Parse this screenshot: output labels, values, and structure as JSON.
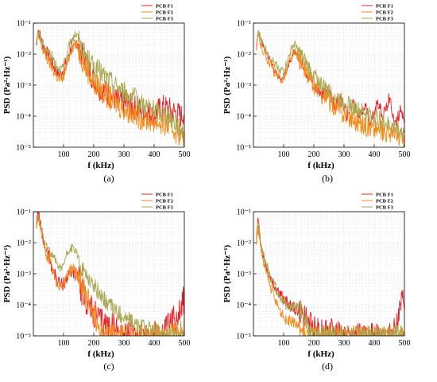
{
  "colors": {
    "F1": "#e8202a",
    "F2": "#f28c1a",
    "F3": "#a8a850",
    "grid": "#dcdcdc"
  },
  "chart_data": [
    {
      "type": "line",
      "caption": "(a)",
      "xlabel": "f (kHz)",
      "ylabel": "PSD (Pa²·Hz⁻¹)",
      "y_scale": "log",
      "xlim": [
        0,
        500
      ],
      "ylim": [
        1e-05,
        0.1
      ],
      "xticks": [
        "100",
        "200",
        "300",
        "400",
        "500"
      ],
      "yticks": [
        "10⁻⁵",
        "10⁻⁴",
        "10⁻³",
        "10⁻²",
        "10⁻¹"
      ],
      "grid": true,
      "legend_position": "top-right",
      "series": [
        {
          "name": "PCB F1",
          "color_key": "F1",
          "x": [
            10,
            15,
            20,
            25,
            30,
            40,
            50,
            60,
            70,
            80,
            90,
            100,
            110,
            120,
            130,
            140,
            150,
            160,
            180,
            200,
            220,
            250,
            280,
            300,
            330,
            360,
            400,
            430,
            460,
            490,
            500
          ],
          "y": [
            0.02,
            0.07,
            0.045,
            0.03,
            0.022,
            0.014,
            0.009,
            0.006,
            0.0035,
            0.0025,
            0.0022,
            0.0035,
            0.006,
            0.012,
            0.02,
            0.024,
            0.016,
            0.01,
            0.004,
            0.0015,
            0.0008,
            0.0005,
            0.0003,
            0.00025,
            0.0002,
            0.00015,
            0.00012,
            0.0002,
            0.00015,
            0.0001,
            0.00015
          ],
          "noise": 0.3
        },
        {
          "name": "PCB F2",
          "color_key": "F2",
          "x": [
            10,
            15,
            20,
            25,
            30,
            40,
            50,
            60,
            70,
            80,
            90,
            100,
            110,
            120,
            130,
            140,
            150,
            160,
            180,
            200,
            250,
            300,
            350,
            400,
            450,
            480,
            500
          ],
          "y": [
            0.015,
            0.04,
            0.03,
            0.022,
            0.015,
            0.009,
            0.006,
            0.004,
            0.0025,
            0.0018,
            0.0013,
            0.002,
            0.004,
            0.01,
            0.018,
            0.022,
            0.014,
            0.008,
            0.003,
            0.0012,
            0.0004,
            0.00018,
            0.0001,
            7e-05,
            5e-05,
            3e-05,
            2e-05
          ],
          "noise": 0.3
        },
        {
          "name": "PCB F3",
          "color_key": "F3",
          "x": [
            10,
            15,
            20,
            25,
            30,
            40,
            50,
            60,
            70,
            80,
            90,
            100,
            110,
            120,
            130,
            140,
            150,
            160,
            180,
            200,
            250,
            300,
            350,
            400,
            450,
            480,
            500
          ],
          "y": [
            0.02,
            0.05,
            0.04,
            0.03,
            0.022,
            0.016,
            0.012,
            0.009,
            0.006,
            0.004,
            0.003,
            0.004,
            0.008,
            0.02,
            0.04,
            0.045,
            0.03,
            0.015,
            0.007,
            0.004,
            0.0015,
            0.0006,
            0.0003,
            0.00015,
            0.0001,
            5e-05,
            3e-05
          ],
          "noise": 0.25
        }
      ]
    },
    {
      "type": "line",
      "caption": "(b)",
      "xlabel": "f (kHz)",
      "ylabel": "PSD (Pa²·Hz⁻¹)",
      "y_scale": "log",
      "xlim": [
        0,
        500
      ],
      "ylim": [
        1e-05,
        0.1
      ],
      "xticks": [
        "100",
        "200",
        "300",
        "400",
        "500"
      ],
      "yticks": [
        "10⁻⁵",
        "10⁻⁴",
        "10⁻³",
        "10⁻²",
        "10⁻¹"
      ],
      "grid": true,
      "legend_position": "top-right",
      "series": [
        {
          "name": "PCB F1",
          "color_key": "F1",
          "x": [
            10,
            15,
            20,
            25,
            30,
            40,
            50,
            60,
            70,
            80,
            90,
            100,
            110,
            120,
            130,
            140,
            150,
            160,
            180,
            200,
            220,
            250,
            270,
            290,
            310,
            330,
            350,
            370,
            390,
            410,
            430,
            450,
            470,
            490,
            500
          ],
          "y": [
            0.015,
            0.06,
            0.04,
            0.028,
            0.02,
            0.012,
            0.008,
            0.005,
            0.003,
            0.002,
            0.0015,
            0.002,
            0.003,
            0.006,
            0.01,
            0.012,
            0.008,
            0.005,
            0.002,
            0.001,
            0.0005,
            0.0006,
            0.0002,
            0.0004,
            0.0001,
            0.0003,
            8e-05,
            0.0002,
            6e-05,
            0.0003,
            0.0001,
            0.0004,
            5e-05,
            0.0002,
            5e-05
          ],
          "noise": 0.15
        },
        {
          "name": "PCB F2",
          "color_key": "F2",
          "x": [
            10,
            15,
            20,
            25,
            30,
            40,
            50,
            60,
            70,
            80,
            90,
            100,
            110,
            120,
            130,
            140,
            150,
            160,
            180,
            200,
            250,
            300,
            350,
            400,
            450,
            480,
            500
          ],
          "y": [
            0.012,
            0.04,
            0.03,
            0.02,
            0.015,
            0.009,
            0.006,
            0.004,
            0.0025,
            0.0018,
            0.0014,
            0.0018,
            0.003,
            0.006,
            0.009,
            0.011,
            0.008,
            0.005,
            0.002,
            0.001,
            0.0003,
            0.00012,
            6e-05,
            4e-05,
            3e-05,
            2e-05,
            2e-05
          ],
          "noise": 0.25
        },
        {
          "name": "PCB F3",
          "color_key": "F3",
          "x": [
            10,
            15,
            20,
            25,
            30,
            40,
            50,
            60,
            70,
            80,
            90,
            100,
            110,
            120,
            130,
            140,
            150,
            160,
            180,
            200,
            250,
            300,
            350,
            400,
            450,
            480,
            500
          ],
          "y": [
            0.02,
            0.05,
            0.04,
            0.03,
            0.022,
            0.015,
            0.01,
            0.007,
            0.005,
            0.004,
            0.003,
            0.003,
            0.005,
            0.01,
            0.018,
            0.02,
            0.012,
            0.008,
            0.004,
            0.002,
            0.0006,
            0.0003,
            0.00015,
            0.0001,
            5e-05,
            4e-05,
            3e-05
          ],
          "noise": 0.2
        }
      ]
    },
    {
      "type": "line",
      "caption": "(c)",
      "xlabel": "f (kHz)",
      "ylabel": "PSD (Pa²·Hz⁻¹)",
      "y_scale": "log",
      "xlim": [
        0,
        500
      ],
      "ylim": [
        1e-05,
        0.1
      ],
      "xticks": [
        "100",
        "200",
        "300",
        "400",
        "500"
      ],
      "yticks": [
        "10⁻⁵",
        "10⁻⁴",
        "10⁻³",
        "10⁻²",
        "10⁻¹"
      ],
      "grid": true,
      "legend_position": "top-right",
      "series": [
        {
          "name": "PCB F1",
          "color_key": "F1",
          "x": [
            10,
            15,
            20,
            25,
            30,
            40,
            50,
            60,
            70,
            80,
            90,
            100,
            110,
            120,
            130,
            140,
            150,
            160,
            180,
            200,
            220,
            250,
            280,
            300,
            350,
            400,
            430,
            450,
            470,
            490,
            500
          ],
          "y": [
            0.04,
            0.1,
            0.06,
            0.03,
            0.015,
            0.007,
            0.004,
            0.002,
            0.001,
            0.0006,
            0.0004,
            0.0005,
            0.0007,
            0.001,
            0.0012,
            0.001,
            0.0006,
            0.0003,
            0.0001,
            5e-05,
            3e-05,
            2e-05,
            1.5e-05,
            1e-05,
            1e-05,
            1e-05,
            1e-05,
            2e-05,
            4e-05,
            0.0001,
            0.00015
          ],
          "noise": 0.35
        },
        {
          "name": "PCB F2",
          "color_key": "F2",
          "x": [
            10,
            15,
            20,
            25,
            30,
            40,
            50,
            60,
            70,
            80,
            90,
            100,
            110,
            120,
            130,
            140,
            150,
            160,
            180,
            200,
            220,
            250,
            280,
            300,
            350,
            400,
            450,
            480,
            500
          ],
          "y": [
            0.03,
            0.08,
            0.05,
            0.025,
            0.012,
            0.005,
            0.003,
            0.0015,
            0.0008,
            0.0005,
            0.0004,
            0.0005,
            0.0008,
            0.0012,
            0.0015,
            0.0012,
            0.0007,
            0.0004,
            0.00015,
            5e-05,
            2e-05,
            1e-05,
            1e-05,
            1e-05,
            1e-05,
            1e-05,
            1e-05,
            1.2e-05,
            2e-05
          ],
          "noise": 0.3
        },
        {
          "name": "PCB F3",
          "color_key": "F3",
          "x": [
            10,
            15,
            20,
            25,
            30,
            40,
            50,
            60,
            70,
            80,
            90,
            100,
            110,
            120,
            130,
            140,
            150,
            160,
            180,
            200,
            250,
            300,
            350,
            400,
            450,
            480,
            500
          ],
          "y": [
            0.03,
            0.08,
            0.05,
            0.03,
            0.02,
            0.01,
            0.006,
            0.004,
            0.003,
            0.002,
            0.0015,
            0.002,
            0.004,
            0.006,
            0.007,
            0.005,
            0.003,
            0.0015,
            0.0008,
            0.0004,
            0.0001,
            4e-05,
            2e-05,
            1.5e-05,
            1e-05,
            1e-05,
            1e-05
          ],
          "noise": 0.2
        }
      ]
    },
    {
      "type": "line",
      "caption": "(d)",
      "xlabel": "f (kHz)",
      "ylabel": "PSD (Pa²·Hz⁻¹)",
      "y_scale": "log",
      "xlim": [
        0,
        500
      ],
      "ylim": [
        1e-05,
        0.1
      ],
      "xticks": [
        "100",
        "200",
        "300",
        "400",
        "500"
      ],
      "yticks": [
        "10⁻⁵",
        "10⁻⁴",
        "10⁻³",
        "10⁻²",
        "10⁻¹"
      ],
      "grid": true,
      "legend_position": "top-right",
      "series": [
        {
          "name": "PCB F1",
          "color_key": "F1",
          "x": [
            10,
            15,
            20,
            25,
            30,
            40,
            50,
            60,
            70,
            80,
            90,
            100,
            110,
            120,
            140,
            160,
            180,
            200,
            250,
            300,
            350,
            400,
            430,
            450,
            470,
            480,
            490,
            500
          ],
          "y": [
            0.015,
            0.05,
            0.02,
            0.01,
            0.005,
            0.002,
            0.001,
            0.0006,
            0.0004,
            0.0003,
            0.0002,
            0.00015,
            0.00012,
            0.0001,
            7e-05,
            5e-05,
            3e-05,
            2e-05,
            1.5e-05,
            1e-05,
            1e-05,
            1e-05,
            1e-05,
            1e-05,
            2e-05,
            4e-05,
            0.0001,
            0.00015
          ],
          "noise": 0.3
        },
        {
          "name": "PCB F2",
          "color_key": "F2",
          "x": [
            10,
            15,
            20,
            25,
            30,
            40,
            50,
            60,
            70,
            80,
            90,
            100,
            110,
            120,
            140,
            160,
            180,
            200,
            250,
            300,
            350,
            400,
            450,
            500
          ],
          "y": [
            0.01,
            0.03,
            0.015,
            0.007,
            0.003,
            0.0012,
            0.0006,
            0.0003,
            0.00015,
            0.0001,
            6e-05,
            4e-05,
            3e-05,
            3e-05,
            2.5e-05,
            1.5e-05,
            1e-05,
            1e-05,
            1e-05,
            1e-05,
            1e-05,
            1e-05,
            1e-05,
            1e-05
          ],
          "noise": 0.25
        },
        {
          "name": "PCB F3",
          "color_key": "F3",
          "x": [
            10,
            15,
            20,
            25,
            30,
            40,
            50,
            60,
            70,
            80,
            90,
            100,
            110,
            120,
            140,
            150,
            160,
            180,
            200,
            250,
            300,
            350,
            400,
            450,
            500
          ],
          "y": [
            0.015,
            0.04,
            0.025,
            0.012,
            0.006,
            0.0025,
            0.0012,
            0.0007,
            0.0004,
            0.00025,
            0.00018,
            0.00012,
            0.0001,
            9e-05,
            8e-05,
            0.00012,
            6e-05,
            2e-05,
            1e-05,
            1e-05,
            1e-05,
            1e-05,
            1e-05,
            1e-05,
            1e-05
          ],
          "noise": 0.25
        }
      ]
    }
  ]
}
